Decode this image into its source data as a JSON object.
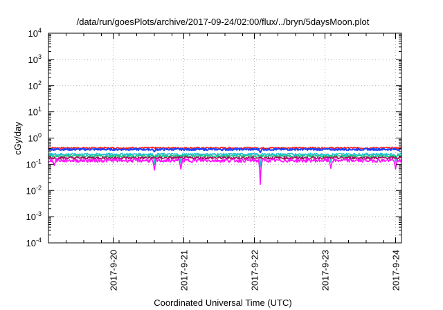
{
  "chart_data": {
    "type": "line",
    "title": "/data/run/goesPlots/archive/2017-09-24/02:00/flux/../bryn/5daysMoon.plot",
    "xlabel": "Coordinated Universal Time (UTC)",
    "ylabel": "cGy/day",
    "y_scale": "log",
    "ylim": [
      0.0001,
      10000
    ],
    "y_ticks": [
      {
        "base": "10",
        "exp": "-4",
        "value": 0.0001
      },
      {
        "base": "10",
        "exp": "-3",
        "value": 0.001
      },
      {
        "base": "10",
        "exp": "-2",
        "value": 0.01
      },
      {
        "base": "10",
        "exp": "-1",
        "value": 0.1
      },
      {
        "base": "10",
        "exp": "0",
        "value": 1
      },
      {
        "base": "10",
        "exp": "1",
        "value": 10
      },
      {
        "base": "10",
        "exp": "2",
        "value": 100
      },
      {
        "base": "10",
        "exp": "3",
        "value": 1000
      },
      {
        "base": "10",
        "exp": "4",
        "value": 10000
      }
    ],
    "xlim": [
      "2017-09-19 02:00",
      "2017-09-24 02:00"
    ],
    "x_ticks": [
      "2017-9-20",
      "2017-9-21",
      "2017-9-22",
      "2017-9-23",
      "2017-9-24"
    ],
    "grid": true,
    "legend": "none",
    "series": [
      {
        "color": "#ff2020",
        "level": 0.42,
        "noise": 0.05,
        "dips": []
      },
      {
        "color": "#2040ff",
        "level": 0.37,
        "noise": 0.05,
        "dips": [
          {
            "at": "2017-09-20 14:00",
            "to": 0.3
          },
          {
            "at": "2017-09-22 02:00",
            "to": 0.28
          }
        ]
      },
      {
        "color": "#20c0d0",
        "level": 0.24,
        "noise": 0.04,
        "dips": [
          {
            "at": "2017-09-20 14:00",
            "to": 0.1
          },
          {
            "at": "2017-09-20 23:00",
            "to": 0.11
          },
          {
            "at": "2017-09-22 02:00",
            "to": 0.08
          },
          {
            "at": "2017-09-23 02:00",
            "to": 0.12
          },
          {
            "at": "2017-09-24 00:00",
            "to": 0.12
          }
        ]
      },
      {
        "color": "#20c080",
        "level": 0.205,
        "noise": 0.03,
        "dips": []
      },
      {
        "color": "#a01060",
        "level": 0.175,
        "noise": 0.03,
        "dips": []
      },
      {
        "color": "#ff10ff",
        "level": 0.14,
        "noise": 0.035,
        "dips": [
          {
            "at": "2017-09-19 04:00",
            "to": 0.09
          },
          {
            "at": "2017-09-20 14:00",
            "to": 0.06
          },
          {
            "at": "2017-09-20 23:00",
            "to": 0.065
          },
          {
            "at": "2017-09-22 02:00",
            "to": 0.017
          },
          {
            "at": "2017-09-23 02:00",
            "to": 0.07
          },
          {
            "at": "2017-09-24 00:00",
            "to": 0.065
          }
        ]
      }
    ]
  }
}
